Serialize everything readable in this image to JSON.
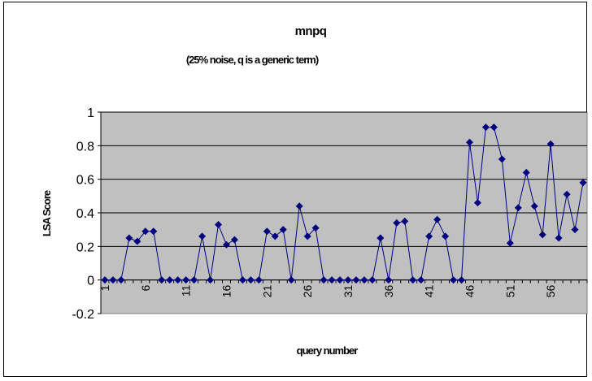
{
  "chart_data": {
    "type": "line",
    "title": "mnpq",
    "subtitle": "(25% noise, q is a generic term)",
    "xlabel": "query number",
    "ylabel": "LSA Score",
    "ylim": [
      -0.2,
      1
    ],
    "yticks": [
      -0.2,
      0,
      0.2,
      0.4,
      0.6,
      0.8,
      1
    ],
    "yticklabels": [
      "-0.2",
      "0",
      "0.2",
      "0.4",
      "0.6",
      "0.8",
      "1"
    ],
    "xticklabels": [
      "1",
      "6",
      "11",
      "16",
      "21",
      "26",
      "31",
      "36",
      "41",
      "46",
      "51",
      "56"
    ],
    "xticks": [
      1,
      6,
      11,
      16,
      21,
      26,
      31,
      36,
      41,
      46,
      51,
      56
    ],
    "x": [
      1,
      2,
      3,
      4,
      5,
      6,
      7,
      8,
      9,
      10,
      11,
      12,
      13,
      14,
      15,
      16,
      17,
      18,
      19,
      20,
      21,
      22,
      23,
      24,
      25,
      26,
      27,
      28,
      29,
      30,
      31,
      32,
      33,
      34,
      35,
      36,
      37,
      38,
      39,
      40,
      41,
      42,
      43,
      44,
      45,
      46,
      47,
      48,
      49,
      50,
      51,
      52,
      53,
      54,
      55,
      56,
      57,
      58,
      59,
      60
    ],
    "series": [
      {
        "values": [
          0,
          0,
          0,
          0.25,
          0.23,
          0.29,
          0.29,
          0,
          0,
          0,
          0,
          0,
          0.26,
          0,
          0.33,
          0.21,
          0.24,
          0,
          0,
          0,
          0.29,
          0.26,
          0.3,
          0,
          0.44,
          0.26,
          0.31,
          0,
          0,
          0,
          0,
          0,
          0,
          0,
          0.25,
          0,
          0.34,
          0.35,
          0,
          0,
          0.26,
          0.36,
          0.26,
          0,
          0,
          0.82,
          0.46,
          0.91,
          0.91,
          0.72,
          0.22,
          0.43,
          0.64,
          0.44,
          0.27,
          0.81,
          0.25,
          0.51,
          0.3,
          0.58
        ],
        "color": "#00007f"
      }
    ],
    "grid": true,
    "legend": false,
    "plot_background": "#c0c0c0",
    "gridline_color": "#000000"
  }
}
